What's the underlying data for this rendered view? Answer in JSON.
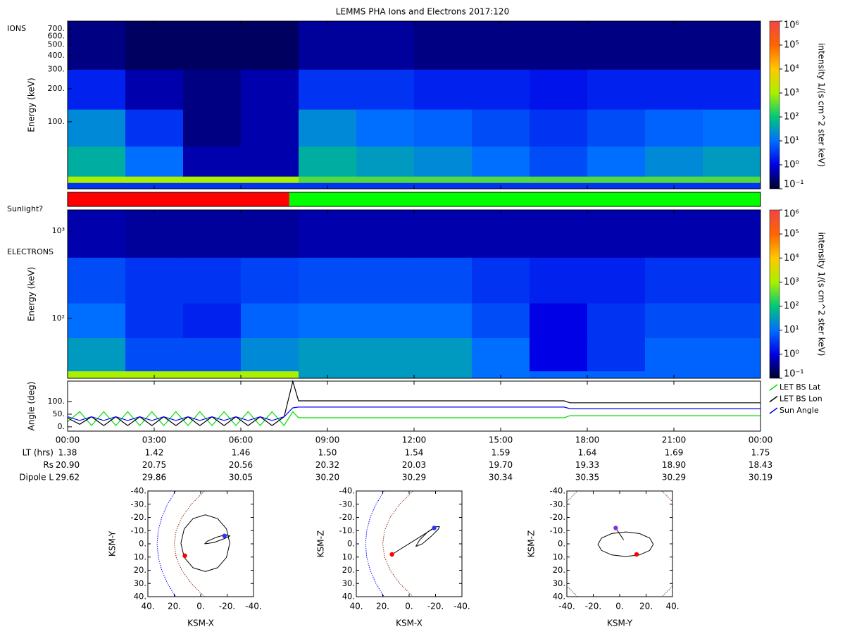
{
  "title": "LEMMS PHA Ions and Electrons  2017:120",
  "chart_data": [
    {
      "type": "spectrogram",
      "label": "IONS",
      "ylabel": "Energy (keV)",
      "log_y": true,
      "xlim": [
        0,
        24
      ],
      "ylim": [
        24.6,
        822
      ],
      "yticks": [
        {
          "value": 100,
          "label": "100."
        },
        {
          "value": 200,
          "label": "200."
        },
        {
          "value": 300,
          "label": "300."
        },
        {
          "value": 400,
          "label": "400."
        },
        {
          "value": 500,
          "label": "500."
        },
        {
          "value": 600,
          "label": "600."
        },
        {
          "value": 700,
          "label": "700."
        }
      ],
      "time_bins": [
        0,
        2,
        4,
        6,
        8,
        10,
        12,
        14,
        16,
        18,
        20,
        22,
        24
      ],
      "energy_bins": [
        24.6,
        28,
        32,
        60,
        130,
        300,
        822
      ],
      "values": [
        [
          3,
          3,
          3,
          3,
          3,
          3,
          3,
          3,
          3,
          3,
          3,
          3
        ],
        [
          1000,
          1000,
          1000,
          1000,
          300,
          300,
          300,
          300,
          300,
          300,
          300,
          300
        ],
        [
          50,
          10,
          0.5,
          0.5,
          50,
          30,
          20,
          10,
          5,
          10,
          20,
          30
        ],
        [
          20,
          3,
          0.3,
          0.5,
          20,
          10,
          8,
          5,
          3,
          5,
          8,
          10
        ],
        [
          2,
          0.5,
          0.3,
          0.5,
          3,
          3,
          2,
          2,
          1.5,
          2,
          2,
          2
        ],
        [
          0.3,
          0.2,
          0.2,
          0.2,
          0.4,
          0.4,
          0.3,
          0.3,
          0.3,
          0.3,
          0.3,
          0.3
        ]
      ],
      "colorbar": {
        "label": "intensity 1/(s cm^2 ster keV)",
        "lim": [
          0.1,
          1000000
        ],
        "ticks": [
          {
            "value": 0.1,
            "label": "10⁻¹"
          },
          {
            "value": 1,
            "label": "10⁰"
          },
          {
            "value": 10,
            "label": "10¹"
          },
          {
            "value": 100,
            "label": "10²"
          },
          {
            "value": 1000,
            "label": "10³"
          },
          {
            "value": 10000,
            "label": "10⁴"
          },
          {
            "value": 100000,
            "label": "10⁵"
          },
          {
            "value": 1000000,
            "label": "10⁶"
          }
        ]
      }
    },
    {
      "type": "state-bar",
      "label": "Sunlight?",
      "xlim": [
        0,
        24
      ],
      "start": [
        0,
        7.68
      ],
      "end": [
        7.68,
        24
      ],
      "colors": [
        "#ff0000",
        "#00ff00"
      ]
    },
    {
      "type": "spectrogram",
      "label": "ELECTRONS",
      "ylabel": "Energy (keV)",
      "log_y": true,
      "xlim": [
        0,
        24
      ],
      "ylim": [
        20.6,
        1746
      ],
      "yticks": [
        {
          "value": 100,
          "label": "10²"
        },
        {
          "value": 1000,
          "label": "10³"
        }
      ],
      "time_bins": [
        0,
        2,
        4,
        6,
        8,
        10,
        12,
        14,
        16,
        18,
        20,
        22,
        24
      ],
      "energy_bins": [
        20.6,
        25,
        60,
        150,
        500,
        1746
      ],
      "values": [
        [
          1000,
          1000,
          1000,
          1000,
          30,
          30,
          30,
          10,
          8,
          8,
          8,
          8
        ],
        [
          30,
          5,
          5,
          20,
          30,
          30,
          30,
          10,
          1,
          3,
          8,
          8
        ],
        [
          10,
          3,
          2,
          8,
          10,
          10,
          10,
          5,
          1,
          3,
          5,
          5
        ],
        [
          5,
          3,
          3,
          4,
          5,
          5,
          5,
          3,
          2,
          2,
          3,
          3
        ],
        [
          0.5,
          0.4,
          0.4,
          0.4,
          0.5,
          0.5,
          0.5,
          0.5,
          0.5,
          0.5,
          0.5,
          0.5
        ]
      ],
      "colorbar": {
        "label": "intensity 1/(s cm^2 ster keV)",
        "lim": [
          0.1,
          1000000
        ],
        "ticks": [
          {
            "value": 0.1,
            "label": "10⁻¹"
          },
          {
            "value": 1,
            "label": "10⁰"
          },
          {
            "value": 10,
            "label": "10¹"
          },
          {
            "value": 100,
            "label": "10²"
          },
          {
            "value": 1000,
            "label": "10³"
          },
          {
            "value": 10000,
            "label": "10⁴"
          },
          {
            "value": 100000,
            "label": "10⁵"
          },
          {
            "value": 1000000,
            "label": "10⁶"
          }
        ]
      }
    },
    {
      "type": "line",
      "ylabel": "Angle (deg)",
      "xlim": [
        0,
        24
      ],
      "ylim": [
        -17,
        181
      ],
      "yticks": [
        {
          "value": 0,
          "label": "0."
        },
        {
          "value": 50,
          "label": "50."
        },
        {
          "value": 100,
          "label": "100."
        }
      ],
      "xticks": [
        {
          "value": 0,
          "label": "00:00"
        },
        {
          "value": 3,
          "label": "03:00"
        },
        {
          "value": 6,
          "label": "06:00"
        },
        {
          "value": 9,
          "label": "09:00"
        },
        {
          "value": 12,
          "label": "12:00"
        },
        {
          "value": 15,
          "label": "15:00"
        },
        {
          "value": 18,
          "label": "18:00"
        },
        {
          "value": 21,
          "label": "21:00"
        },
        {
          "value": 24,
          "label": "00:00"
        }
      ],
      "legend": "outside-right",
      "x": [
        0,
        0.42,
        0.83,
        1.25,
        1.67,
        2.08,
        2.5,
        2.92,
        3.33,
        3.75,
        4.17,
        4.58,
        5,
        5.42,
        5.83,
        6.25,
        6.67,
        7.08,
        7.5,
        7.8,
        8.0,
        17.2,
        17.4,
        24
      ],
      "series": [
        {
          "name": "LET BS Lat",
          "color": "#00dd00",
          "values": [
            20,
            60,
            5,
            60,
            5,
            60,
            5,
            60,
            5,
            60,
            5,
            60,
            5,
            60,
            5,
            60,
            5,
            60,
            5,
            60,
            36,
            36,
            44,
            44
          ]
        },
        {
          "name": "LET BS Lon",
          "color": "#000000",
          "values": [
            35,
            10,
            40,
            5,
            40,
            5,
            40,
            5,
            40,
            5,
            40,
            5,
            40,
            5,
            40,
            5,
            40,
            5,
            40,
            180,
            103,
            103,
            95,
            95
          ]
        },
        {
          "name": "Sun Angle",
          "color": "#0000ff",
          "values": [
            40,
            25,
            40,
            25,
            40,
            25,
            40,
            25,
            40,
            25,
            40,
            25,
            40,
            25,
            40,
            25,
            40,
            25,
            40,
            75,
            78,
            78,
            72,
            72
          ]
        }
      ]
    },
    {
      "type": "orbit",
      "xlabel": "KSM-X",
      "ylabel": "KSM-Y",
      "xlim": [
        40,
        -40
      ],
      "ylim": [
        40,
        -40
      ],
      "xticks": [
        {
          "value": 40,
          "label": "40."
        },
        {
          "value": 20,
          "label": "20."
        },
        {
          "value": 0,
          "label": "0."
        },
        {
          "value": -20,
          "label": "-20."
        },
        {
          "value": -40,
          "label": "-40."
        }
      ],
      "yticks": [
        {
          "value": -40,
          "label": "-40."
        },
        {
          "value": -30,
          "label": "-30."
        },
        {
          "value": -20,
          "label": "-20."
        },
        {
          "value": -10,
          "label": "-10."
        },
        {
          "value": 0,
          "label": "0."
        },
        {
          "value": 10,
          "label": "10."
        },
        {
          "value": 20,
          "label": "20."
        },
        {
          "value": 30,
          "label": "30."
        },
        {
          "value": 40,
          "label": "40."
        }
      ],
      "series": [
        {
          "color": "#0000ff",
          "dashed": true,
          "x": [
            19,
            25.1,
            29.5,
            32.1,
            33,
            32.1,
            29.5,
            25.1,
            19
          ],
          "y": [
            -40,
            -30,
            -20,
            -10,
            0,
            10,
            20,
            30,
            40
          ]
        },
        {
          "color": "#8b3a10",
          "dashed": true,
          "x": [
            -2.9,
            7.1,
            14.3,
            18.6,
            20,
            18.6,
            14.3,
            7.1,
            -2.9
          ],
          "y": [
            -40,
            -30,
            -20,
            -10,
            0,
            10,
            20,
            30,
            40
          ]
        },
        {
          "color": "#000000",
          "dashed": false,
          "x": [
            15,
            12.5,
            5.8,
            -3.5,
            -12.8,
            -19.5,
            -22,
            -19.5,
            -12.8,
            -3.5,
            5.8,
            12.5,
            15
          ],
          "y": [
            -0.5,
            10.3,
            18.1,
            21,
            18.1,
            10.3,
            -0.5,
            -11.3,
            -19.1,
            -22,
            -19.1,
            -11.3,
            -0.5
          ]
        },
        {
          "color": "#000000",
          "dashed": false,
          "x": [
            -3,
            -10,
            -18,
            -22,
            -19,
            -12,
            -5,
            -3
          ],
          "y": [
            0,
            -1,
            -4,
            -6,
            -7,
            -5,
            -2,
            0
          ]
        }
      ],
      "markers": {
        "x": [
          12,
          -18
        ],
        "y": [
          9,
          -6
        ],
        "colors": [
          "#ff0000",
          "#3030ff"
        ]
      }
    },
    {
      "type": "orbit",
      "xlabel": "KSM-X",
      "ylabel": "KSM-Z",
      "xlim": [
        40,
        -40
      ],
      "ylim": [
        40,
        -40
      ],
      "xticks": [
        {
          "value": 40,
          "label": "40."
        },
        {
          "value": 20,
          "label": "20."
        },
        {
          "value": 0,
          "label": "0."
        },
        {
          "value": -20,
          "label": "-20."
        },
        {
          "value": -40,
          "label": "-40."
        }
      ],
      "yticks": [
        {
          "value": -40,
          "label": "-40."
        },
        {
          "value": -30,
          "label": "-30."
        },
        {
          "value": -20,
          "label": "-20."
        },
        {
          "value": -10,
          "label": "-10."
        },
        {
          "value": 0,
          "label": "0."
        },
        {
          "value": 10,
          "label": "10."
        },
        {
          "value": 20,
          "label": "20."
        },
        {
          "value": 30,
          "label": "30."
        },
        {
          "value": 40,
          "label": "40."
        }
      ],
      "series": [
        {
          "color": "#0000ff",
          "dashed": true,
          "x": [
            19,
            25.1,
            29.5,
            32.1,
            33,
            32.1,
            29.5,
            25.1,
            19
          ],
          "y": [
            -40,
            -30,
            -20,
            -10,
            0,
            10,
            20,
            30,
            40
          ]
        },
        {
          "color": "#8b3a10",
          "dashed": true,
          "x": [
            -2.9,
            7.1,
            14.3,
            18.6,
            20,
            18.6,
            14.3,
            7.1,
            -2.9
          ],
          "y": [
            -40,
            -30,
            -20,
            -10,
            0,
            10,
            20,
            30,
            40
          ]
        },
        {
          "color": "#000000",
          "dashed": false,
          "x": [
            -5,
            -10,
            -17,
            -22,
            -23,
            -20,
            -14,
            -8,
            -5
          ],
          "y": [
            2,
            0,
            -6,
            -11,
            -13,
            -13,
            -9,
            -3,
            2
          ]
        },
        {
          "color": "#000000",
          "dashed": false,
          "x": [
            13,
            -3,
            -19
          ],
          "y": [
            8,
            -2,
            -12
          ]
        }
      ],
      "markers": {
        "x": [
          13,
          -19
        ],
        "y": [
          8,
          -12
        ],
        "colors": [
          "#ff0000",
          "#3030ff"
        ]
      }
    },
    {
      "type": "orbit",
      "xlabel": "KSM-Y",
      "ylabel": "KSM-Z",
      "xlim": [
        -40,
        40
      ],
      "ylim": [
        40,
        -40
      ],
      "xticks": [
        {
          "value": -40,
          "label": "-40."
        },
        {
          "value": -20,
          "label": "-20."
        },
        {
          "value": 0,
          "label": "0."
        },
        {
          "value": 20,
          "label": "20."
        },
        {
          "value": 40,
          "label": "40."
        }
      ],
      "yticks": [
        {
          "value": -40,
          "label": "-40."
        },
        {
          "value": -30,
          "label": "-30."
        },
        {
          "value": -20,
          "label": "-20."
        },
        {
          "value": -10,
          "label": "-10."
        },
        {
          "value": 0,
          "label": "0."
        },
        {
          "value": 10,
          "label": "10."
        },
        {
          "value": 20,
          "label": "20."
        },
        {
          "value": 30,
          "label": "30."
        },
        {
          "value": 40,
          "label": "40."
        }
      ],
      "series": [
        {
          "color": "#8b3a10",
          "dashed": true,
          "x": [
            -40,
            -36,
            -32,
            null,
            32,
            36,
            40,
            null,
            40,
            36,
            32,
            null,
            -32,
            -36,
            -40
          ],
          "y": [
            -32,
            -36,
            -40,
            null,
            -40,
            -36,
            -32,
            null,
            32,
            36,
            40,
            null,
            40,
            36,
            32
          ]
        },
        {
          "color": "#000000",
          "dashed": false,
          "x": [
            25.5,
            22.7,
            15,
            4.5,
            -6,
            -13.7,
            -16.5,
            -13.7,
            -6,
            4.5,
            15,
            22.7,
            25.5
          ],
          "y": [
            0.3,
            5,
            8.4,
            9.6,
            8.4,
            5,
            0.3,
            -4.4,
            -7.8,
            -9,
            -7.8,
            -4.4,
            0.3
          ]
        },
        {
          "color": "#000000",
          "dashed": false,
          "x": [
            -3,
            3
          ],
          "y": [
            -12,
            -3
          ]
        }
      ],
      "markers": {
        "x": [
          12.8,
          -3
        ],
        "y": [
          8,
          -12
        ],
        "colors": [
          "#ff0000",
          "#8a2be2"
        ]
      }
    }
  ],
  "ephemeris": {
    "rows": [
      {
        "label": "LT (hrs)",
        "values": [
          "1.38",
          "1.42",
          "1.46",
          "1.50",
          "1.54",
          "1.59",
          "1.64",
          "1.69",
          "1.75"
        ]
      },
      {
        "label": "Rs",
        "values": [
          "20.90",
          "20.75",
          "20.56",
          "20.32",
          "20.03",
          "19.70",
          "19.33",
          "18.90",
          "18.43"
        ]
      },
      {
        "label": "Dipole L",
        "values": [
          "29.62",
          "29.86",
          "30.05",
          "30.20",
          "30.29",
          "30.34",
          "30.35",
          "30.29",
          "30.19"
        ]
      }
    ]
  }
}
